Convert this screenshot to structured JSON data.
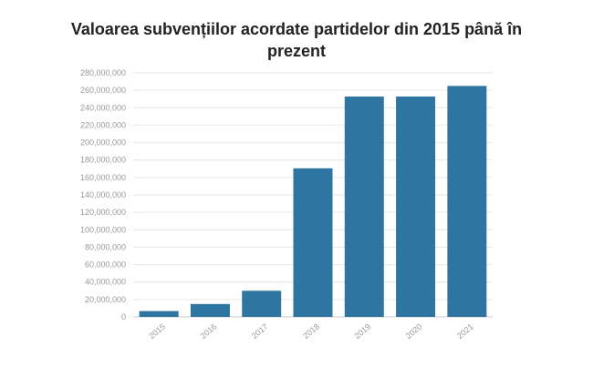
{
  "chart_data": {
    "type": "bar",
    "title_lines": [
      "Valoarea subvențiilor acordate partidelor din 2015 până în",
      "prezent"
    ],
    "categories": [
      "2015",
      "2016",
      "2017",
      "2018",
      "2019",
      "2020",
      "2021"
    ],
    "values": [
      6700000,
      14800000,
      30000000,
      170500000,
      252800000,
      252800000,
      265000000
    ],
    "y_ticks": [
      "0",
      "20,000,000",
      "40,000,000",
      "60,000,000",
      "80,000,000",
      "100,000,000",
      "120,000,000",
      "140,000,000",
      "160,000,000",
      "180,000,000",
      "200,000,000",
      "220,000,000",
      "240,000,000",
      "260,000,000",
      "280,000,000"
    ],
    "ylim": [
      0,
      280000000
    ],
    "bar_color": "#2e76a1",
    "grid": true,
    "legend": "none"
  }
}
